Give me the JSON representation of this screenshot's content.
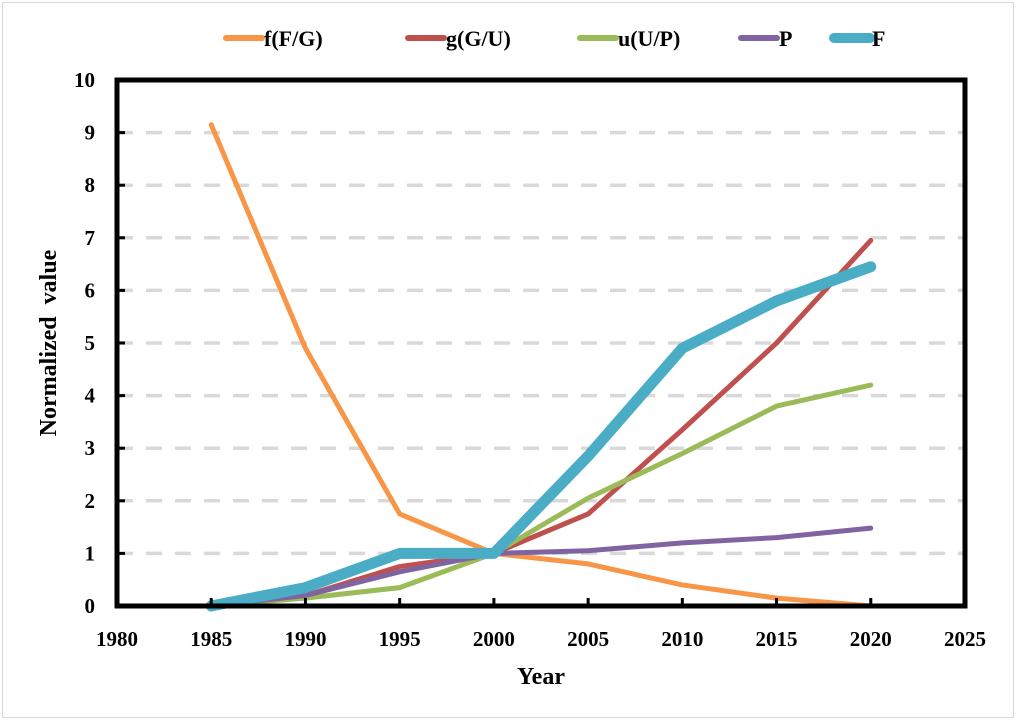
{
  "chart_data": {
    "type": "line",
    "title": "",
    "xlabel": "Year",
    "ylabel": "Normalized  value",
    "xlim": [
      1980,
      2025
    ],
    "ylim": [
      0,
      10
    ],
    "xticks": [
      1980,
      1985,
      1990,
      1995,
      2000,
      2005,
      2010,
      2015,
      2020,
      2025
    ],
    "yticks": [
      0,
      1,
      2,
      3,
      4,
      5,
      6,
      7,
      8,
      9,
      10
    ],
    "grid": {
      "y": true,
      "style": "dashed",
      "color": "#d9d9d9"
    },
    "legend_position": "top",
    "x": [
      1985,
      1990,
      1995,
      2000,
      2005,
      2010,
      2015,
      2020
    ],
    "series": [
      {
        "name": "f(F/G)",
        "color": "#f79646",
        "values": [
          9.15,
          4.9,
          1.75,
          1.0,
          0.8,
          0.4,
          0.15,
          0.0
        ]
      },
      {
        "name": "g(G/U)",
        "color": "#c0504d",
        "values": [
          0.0,
          0.2,
          0.75,
          1.0,
          1.75,
          3.35,
          5.0,
          6.95
        ]
      },
      {
        "name": "u(U/P)",
        "color": "#9bbb59",
        "values": [
          0.0,
          0.15,
          0.35,
          1.0,
          2.05,
          2.9,
          3.8,
          4.2
        ]
      },
      {
        "name": "P",
        "color": "#8064a2",
        "values": [
          0.0,
          0.2,
          0.65,
          1.0,
          1.05,
          1.2,
          1.3,
          1.48
        ]
      },
      {
        "name": "F",
        "color": "#4bacc6",
        "values": [
          0.0,
          0.35,
          1.0,
          1.0,
          2.85,
          4.9,
          5.8,
          6.45
        ]
      }
    ]
  }
}
